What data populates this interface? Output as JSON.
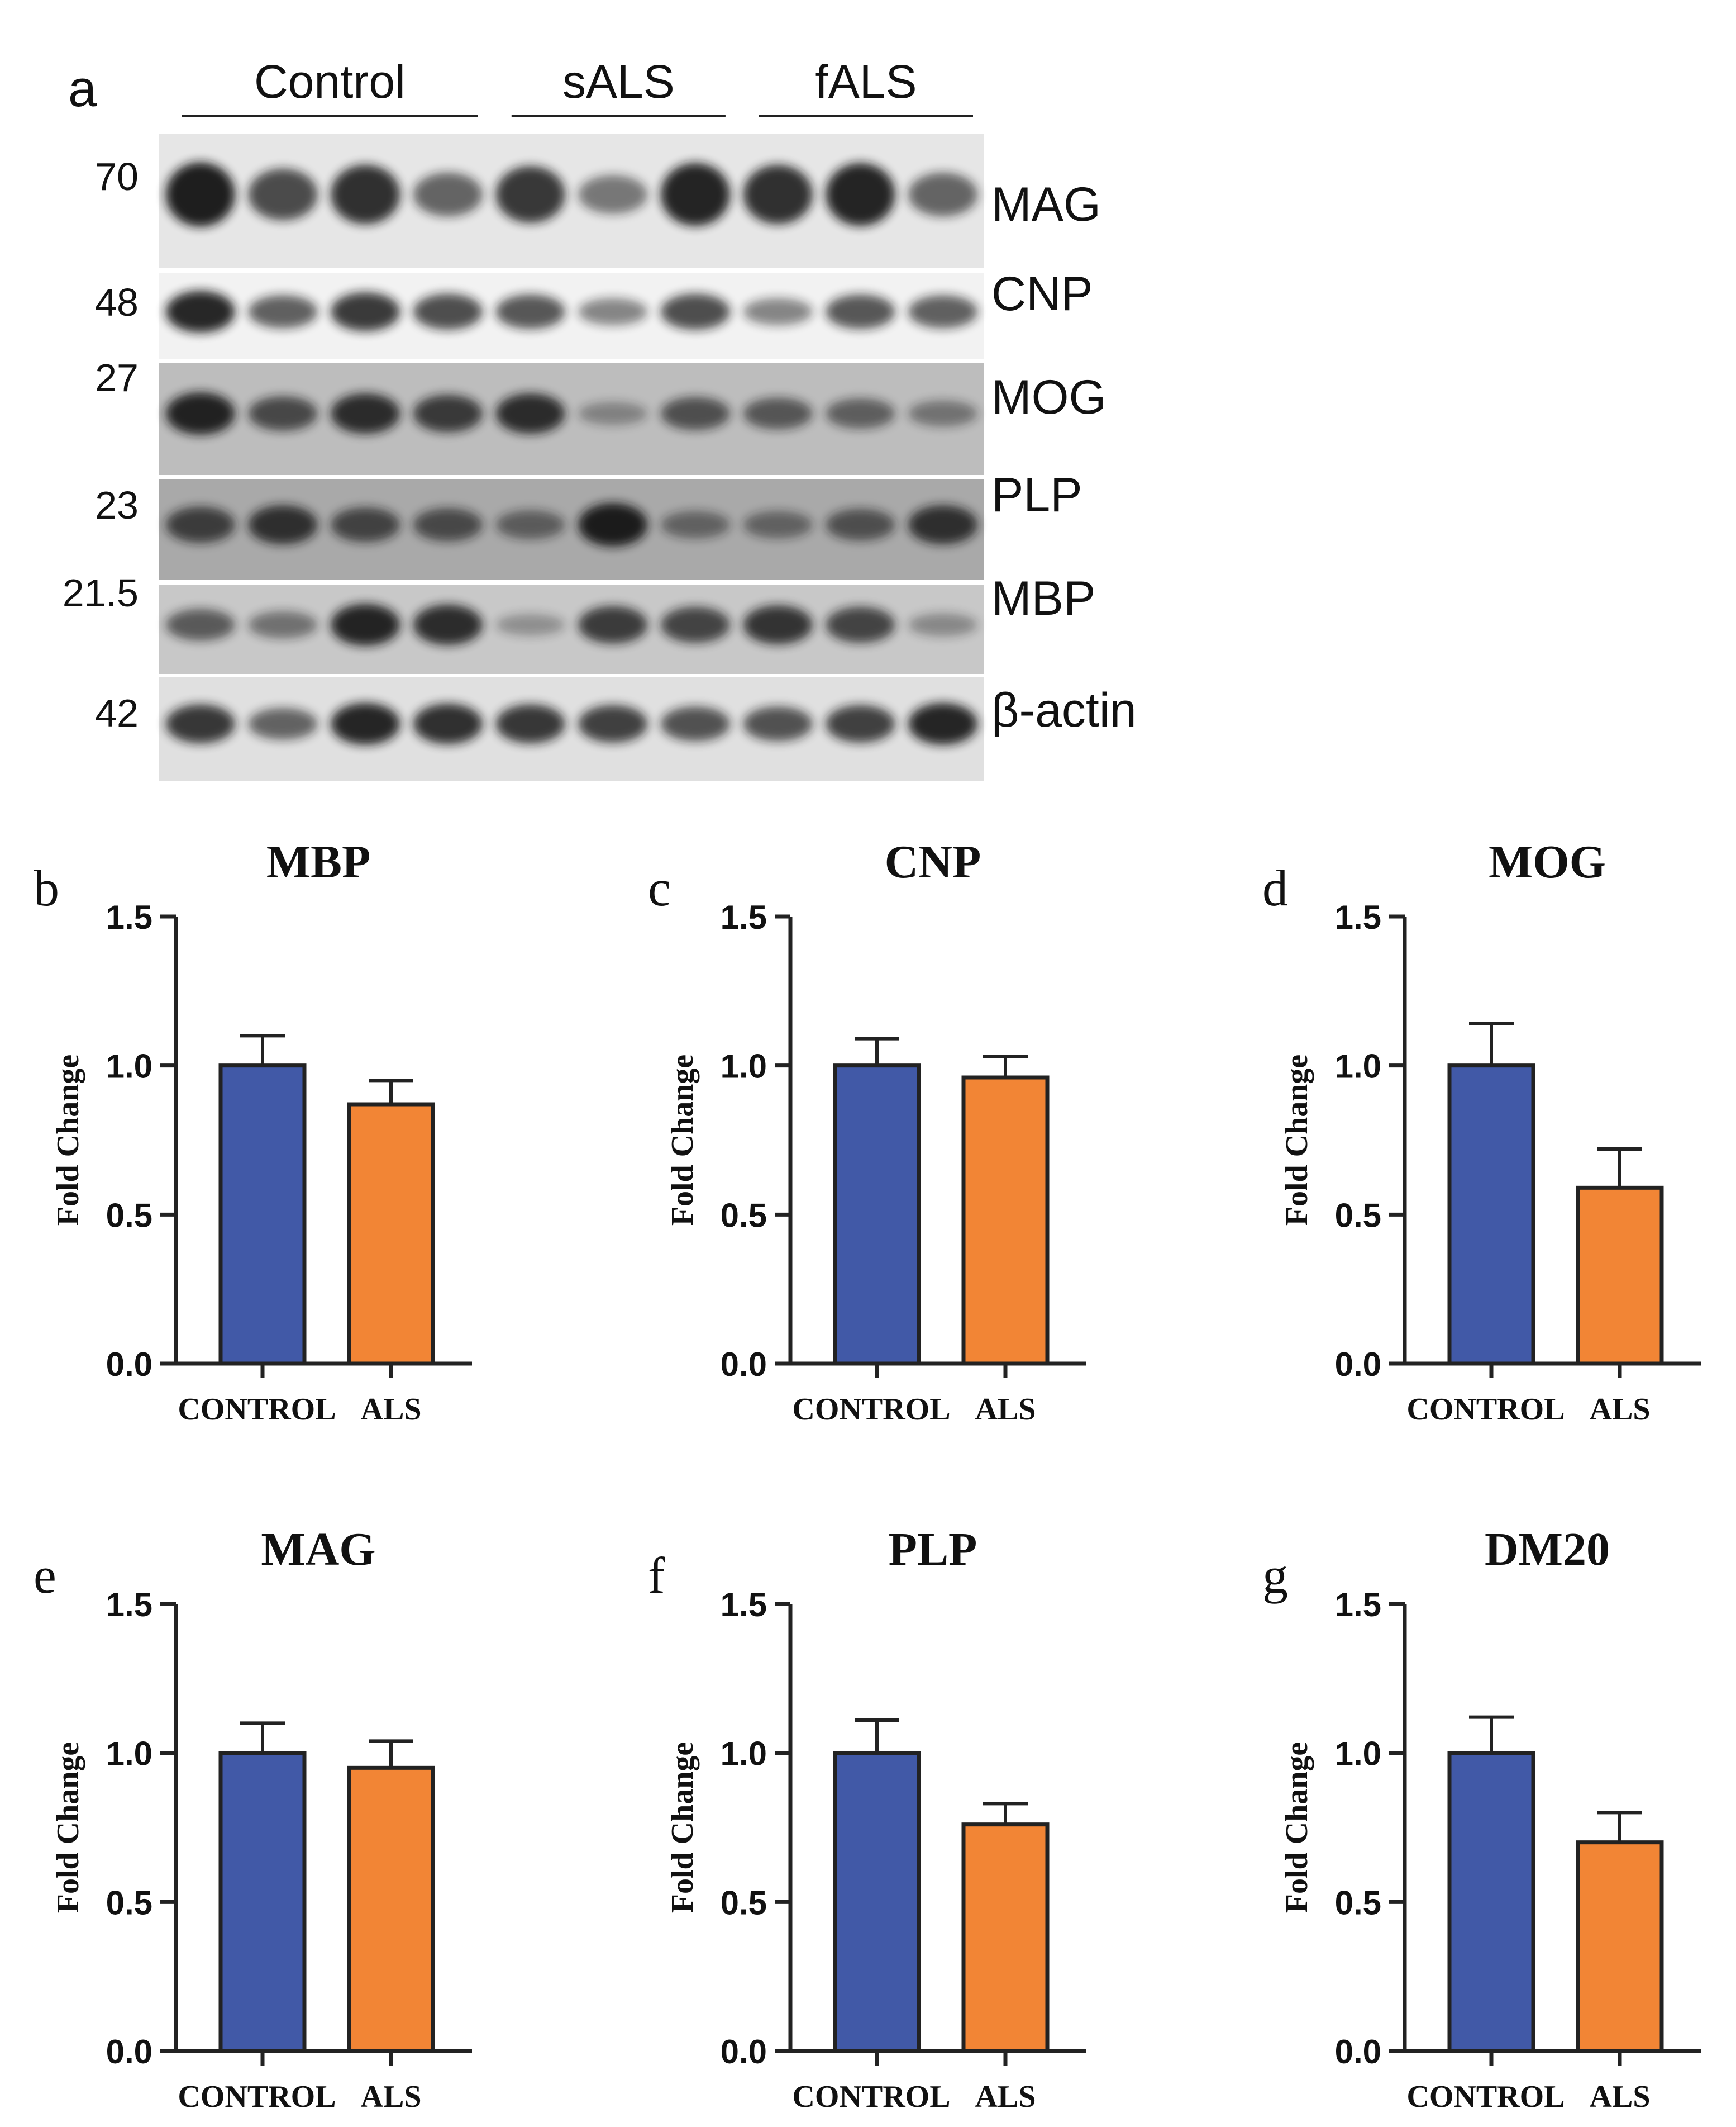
{
  "figure": {
    "panel_a": {
      "letter": "a",
      "groups": [
        {
          "label": "Control",
          "lanes": 4
        },
        {
          "label": "sALS",
          "lanes": 3
        },
        {
          "label": "fALS",
          "lanes": 3
        }
      ],
      "blots": [
        {
          "protein": "MAG",
          "kda": "70",
          "background": "#e6e6e6",
          "intensity": [
            0.95,
            0.7,
            0.85,
            0.55,
            0.8,
            0.45,
            0.92,
            0.85,
            0.92,
            0.55
          ]
        },
        {
          "protein": "CNP",
          "kda": "48",
          "background": "#f2f2f2",
          "intensity": [
            0.9,
            0.6,
            0.8,
            0.7,
            0.65,
            0.4,
            0.7,
            0.4,
            0.65,
            0.6
          ]
        },
        {
          "protein": "MOG",
          "kda": "27",
          "background": "#bdbdbd",
          "intensity": [
            0.92,
            0.65,
            0.85,
            0.75,
            0.85,
            0.25,
            0.6,
            0.55,
            0.5,
            0.35
          ]
        },
        {
          "protein": "PLP",
          "kda": "23",
          "background": "#a9a9a9",
          "intensity": [
            0.7,
            0.8,
            0.65,
            0.6,
            0.45,
            0.95,
            0.4,
            0.4,
            0.55,
            0.8
          ]
        },
        {
          "protein": "MBP",
          "kda": "21.5",
          "background": "#c8c8c8",
          "intensity": [
            0.55,
            0.4,
            0.9,
            0.85,
            0.2,
            0.75,
            0.7,
            0.8,
            0.7,
            0.25
          ]
        },
        {
          "protein": "β-actin",
          "kda": "42",
          "background": "#e0e0e0",
          "intensity": [
            0.8,
            0.55,
            0.9,
            0.85,
            0.8,
            0.75,
            0.65,
            0.65,
            0.75,
            0.9
          ]
        }
      ]
    }
  },
  "colors": {
    "control": "#4159a7",
    "als": "#f28535",
    "axis": "#222222",
    "bar_edge": "#222222",
    "band": "#141414"
  },
  "chart_data": [
    {
      "panel": "b",
      "type": "bar",
      "title": "MBP",
      "ylabel": "Fold Change",
      "ylim": [
        0,
        1.5
      ],
      "yticks": [
        "0.0",
        "0.5",
        "1.0",
        "1.5"
      ],
      "categories": [
        "CONTROL",
        "ALS"
      ],
      "values": [
        1.0,
        0.87
      ],
      "errors": [
        0.1,
        0.08
      ]
    },
    {
      "panel": "c",
      "type": "bar",
      "title": "CNP",
      "ylabel": "Fold Change",
      "ylim": [
        0,
        1.5
      ],
      "yticks": [
        "0.0",
        "0.5",
        "1.0",
        "1.5"
      ],
      "categories": [
        "CONTROL",
        "ALS"
      ],
      "values": [
        1.0,
        0.96
      ],
      "errors": [
        0.09,
        0.07
      ]
    },
    {
      "panel": "d",
      "type": "bar",
      "title": "MOG",
      "ylabel": "Fold Change",
      "ylim": [
        0,
        1.5
      ],
      "yticks": [
        "0.0",
        "0.5",
        "1.0",
        "1.5"
      ],
      "categories": [
        "CONTROL",
        "ALS"
      ],
      "values": [
        1.0,
        0.59
      ],
      "errors": [
        0.14,
        0.13
      ]
    },
    {
      "panel": "e",
      "type": "bar",
      "title": "MAG",
      "ylabel": "Fold Change",
      "ylim": [
        0,
        1.5
      ],
      "yticks": [
        "0.0",
        "0.5",
        "1.0",
        "1.5"
      ],
      "categories": [
        "CONTROL",
        "ALS"
      ],
      "values": [
        1.0,
        0.95
      ],
      "errors": [
        0.1,
        0.09
      ]
    },
    {
      "panel": "f",
      "type": "bar",
      "title": "PLP",
      "ylabel": "Fold Change",
      "ylim": [
        0,
        1.5
      ],
      "yticks": [
        "0.0",
        "0.5",
        "1.0",
        "1.5"
      ],
      "categories": [
        "CONTROL",
        "ALS"
      ],
      "values": [
        1.0,
        0.76
      ],
      "errors": [
        0.11,
        0.07
      ]
    },
    {
      "panel": "g",
      "type": "bar",
      "title": "DM20",
      "ylabel": "Fold Change",
      "ylim": [
        0,
        1.5
      ],
      "yticks": [
        "0.0",
        "0.5",
        "1.0",
        "1.5"
      ],
      "categories": [
        "CONTROL",
        "ALS"
      ],
      "values": [
        1.0,
        0.7
      ],
      "errors": [
        0.12,
        0.1
      ]
    }
  ]
}
